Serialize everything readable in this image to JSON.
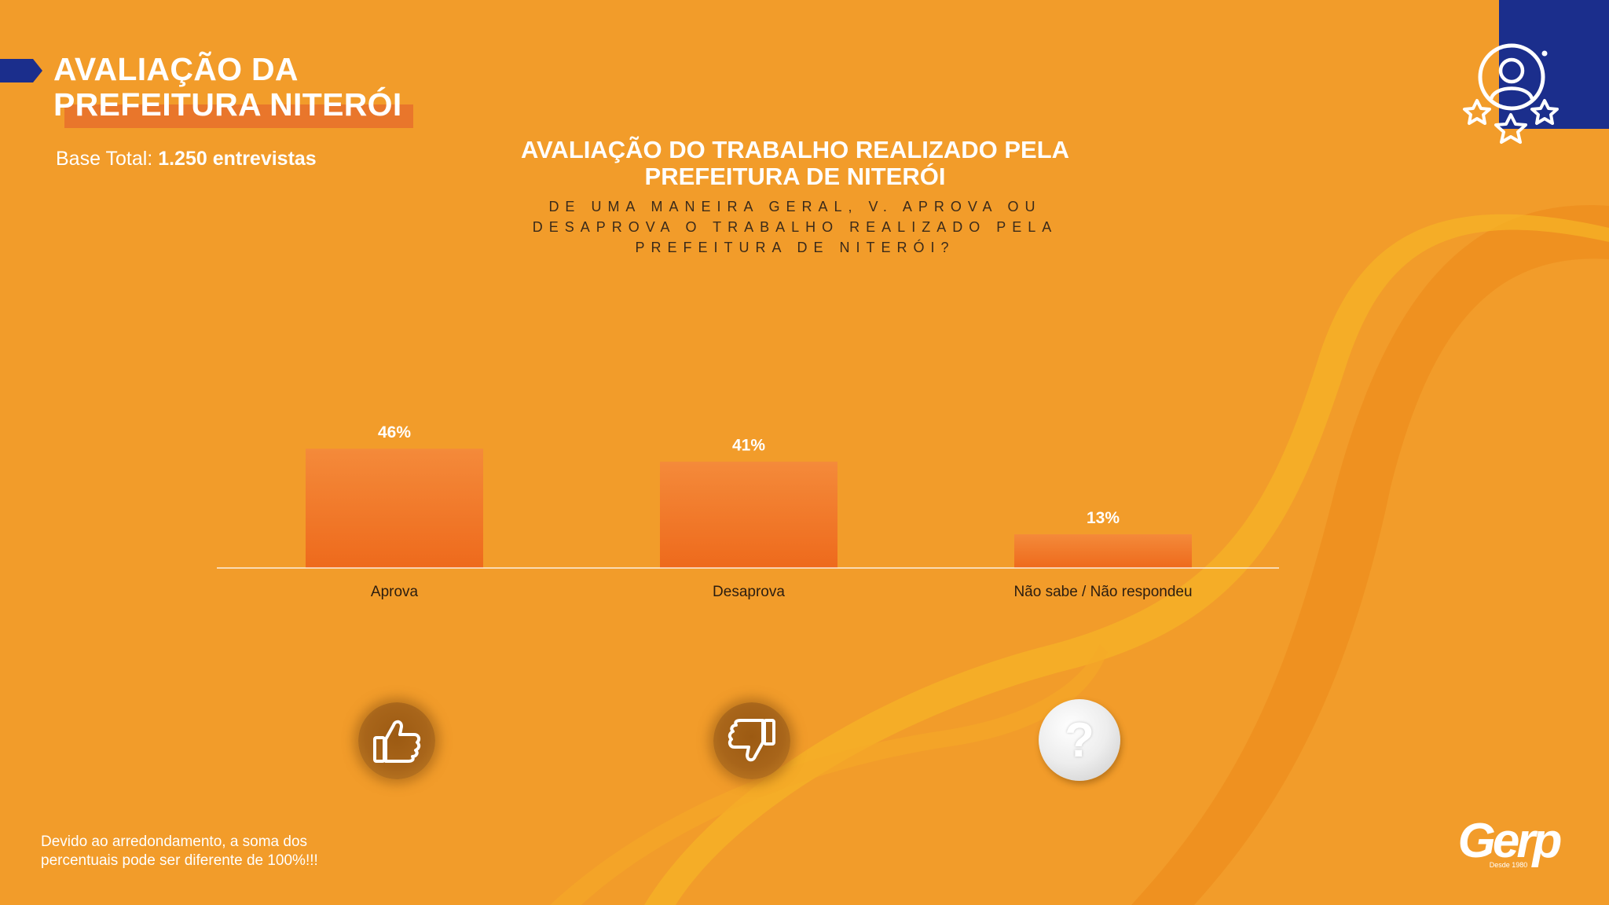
{
  "header": {
    "title_line1": "AVALIAÇÃO DA",
    "title_line2": "PREFEITURA NITERÓI",
    "base_label": "Base Total: ",
    "base_value": "1.250 entrevistas"
  },
  "chart_data": {
    "type": "bar",
    "title_line1": "AVALIAÇÃO DO TRABALHO REALIZADO PELA",
    "title_line2": "PREFEITURA DE NITERÓI",
    "subtitle": [
      "DE UMA MANEIRA GERAL, V. APROVA OU",
      "DESAPROVA O TRABALHO REALIZADO PELA",
      "PREFEITURA DE NITERÓI?"
    ],
    "categories": [
      "Aprova",
      "Desaprova",
      "Não sabe / Não respondeu"
    ],
    "values": [
      46,
      41,
      13
    ],
    "value_labels": [
      "46%",
      "41%",
      "13%"
    ],
    "ylim": [
      0,
      100
    ],
    "grid": false,
    "legend": "none",
    "bar_colors": [
      "#F48A3A",
      "#EE6A1C"
    ]
  },
  "icons": {
    "approve": "thumbs-up-icon",
    "disapprove": "thumbs-down-icon",
    "unknown": "question-mark-icon",
    "unknown_glyph": "?",
    "corner": "user-rating-stars-icon"
  },
  "footer": {
    "note_line1": "Devido ao arredondamento, a soma dos",
    "note_line2": "percentuais pode ser diferente de 100%!!!",
    "logo_text": "Gerp",
    "logo_tagline": "Desde 1980"
  },
  "colors": {
    "background": "#F29C2A",
    "accent_blue": "#1B2E8C",
    "title_highlight": "#E9762B",
    "axis_line": "#FFFFFF"
  }
}
